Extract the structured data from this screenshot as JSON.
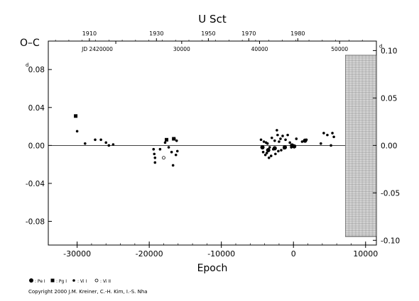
{
  "chart_data": {
    "type": "scatter",
    "title": "U  Sct",
    "ylabel": "O–C",
    "ylabel_unit": "d",
    "xlabel": "Epoch",
    "xlim": [
      -34000,
      11500
    ],
    "ylim": [
      -0.105,
      0.11
    ],
    "x_ticks": [
      "-30000",
      "-20000",
      "-10000",
      "0",
      "10000"
    ],
    "y_ticks_left": [
      "0.08",
      "0.04",
      "0.00",
      "-0.04",
      "-0.08"
    ],
    "y_ticks_right": [
      "0.10",
      "0.05",
      "0.00",
      "-0.05",
      "-0.10"
    ],
    "top_axis_years": [
      "1910",
      "1930",
      "1950",
      "1970",
      "1980"
    ],
    "top_axis_jd": [
      "JD 2420000",
      "30000",
      "40000",
      "50000"
    ],
    "grid": false,
    "legend": [
      {
        "symbol": "pe",
        "label": ": Pe I"
      },
      {
        "symbol": "pg",
        "label": ": Pg I"
      },
      {
        "symbol": "vis",
        "label": ": Vi I"
      },
      {
        "symbol": "visopen",
        "label": ": Vi II"
      }
    ],
    "series": [
      {
        "symbol": "pe",
        "points": [
          [
            -4300,
            -0.002
          ],
          [
            -3500,
            -0.005
          ],
          [
            -2600,
            -0.003
          ],
          [
            -1200,
            -0.002
          ],
          [
            -200,
            0.0
          ],
          [
            100,
            -0.001
          ],
          [
            1600,
            0.005
          ]
        ]
      },
      {
        "symbol": "pg",
        "points": [
          [
            -30200,
            0.031
          ],
          [
            -17600,
            0.006
          ],
          [
            -16600,
            0.007
          ]
        ]
      },
      {
        "symbol": "vis",
        "points": [
          [
            -30000,
            0.015
          ],
          [
            -28900,
            0.002
          ],
          [
            -27500,
            0.006
          ],
          [
            -26700,
            0.006
          ],
          [
            -26000,
            0.003
          ],
          [
            -25600,
            0.0
          ],
          [
            -25000,
            0.001
          ],
          [
            -19400,
            -0.004
          ],
          [
            -19300,
            -0.009
          ],
          [
            -19200,
            -0.013
          ],
          [
            -19200,
            -0.018
          ],
          [
            -18500,
            -0.004
          ],
          [
            -17800,
            0.003
          ],
          [
            -17300,
            -0.002
          ],
          [
            -16900,
            -0.007
          ],
          [
            -16700,
            -0.021
          ],
          [
            -16500,
            0.007
          ],
          [
            -16300,
            -0.01
          ],
          [
            -16200,
            0.005
          ],
          [
            -16100,
            -0.006
          ],
          [
            -4500,
            0.006
          ],
          [
            -4400,
            -0.002
          ],
          [
            -4200,
            -0.007
          ],
          [
            -4100,
            0.004
          ],
          [
            -3900,
            -0.01
          ],
          [
            -3800,
            0.003
          ],
          [
            -3700,
            -0.008
          ],
          [
            -3600,
            0.002
          ],
          [
            -3400,
            -0.013
          ],
          [
            -3300,
            -0.002
          ],
          [
            -3100,
            -0.011
          ],
          [
            -3000,
            0.008
          ],
          [
            -2800,
            -0.004
          ],
          [
            -2600,
            0.005
          ],
          [
            -2500,
            -0.009
          ],
          [
            -2300,
            0.016
          ],
          [
            -2200,
            0.011
          ],
          [
            -2100,
            -0.006
          ],
          [
            -2000,
            0.004
          ],
          [
            -1800,
            0.007
          ],
          [
            -1700,
            -0.005
          ],
          [
            -1500,
            0.01
          ],
          [
            -1300,
            -0.003
          ],
          [
            -1100,
            0.006
          ],
          [
            -800,
            0.011
          ],
          [
            -500,
            0.003
          ],
          [
            -300,
            -0.002
          ],
          [
            400,
            0.007
          ],
          [
            1200,
            0.004
          ],
          [
            1800,
            0.006
          ],
          [
            3800,
            0.002
          ],
          [
            4200,
            0.013
          ],
          [
            4700,
            0.011
          ],
          [
            5200,
            0.0
          ],
          [
            5400,
            0.013
          ],
          [
            5600,
            0.009
          ]
        ]
      },
      {
        "symbol": "visopen",
        "points": [
          [
            -18000,
            -0.013
          ]
        ]
      }
    ],
    "shaded_region_x": [
      7200,
      11500
    ]
  },
  "copyright": "Copyright 2000 J.M. Kreiner, C.-H. Kim, I.-S. Nha"
}
